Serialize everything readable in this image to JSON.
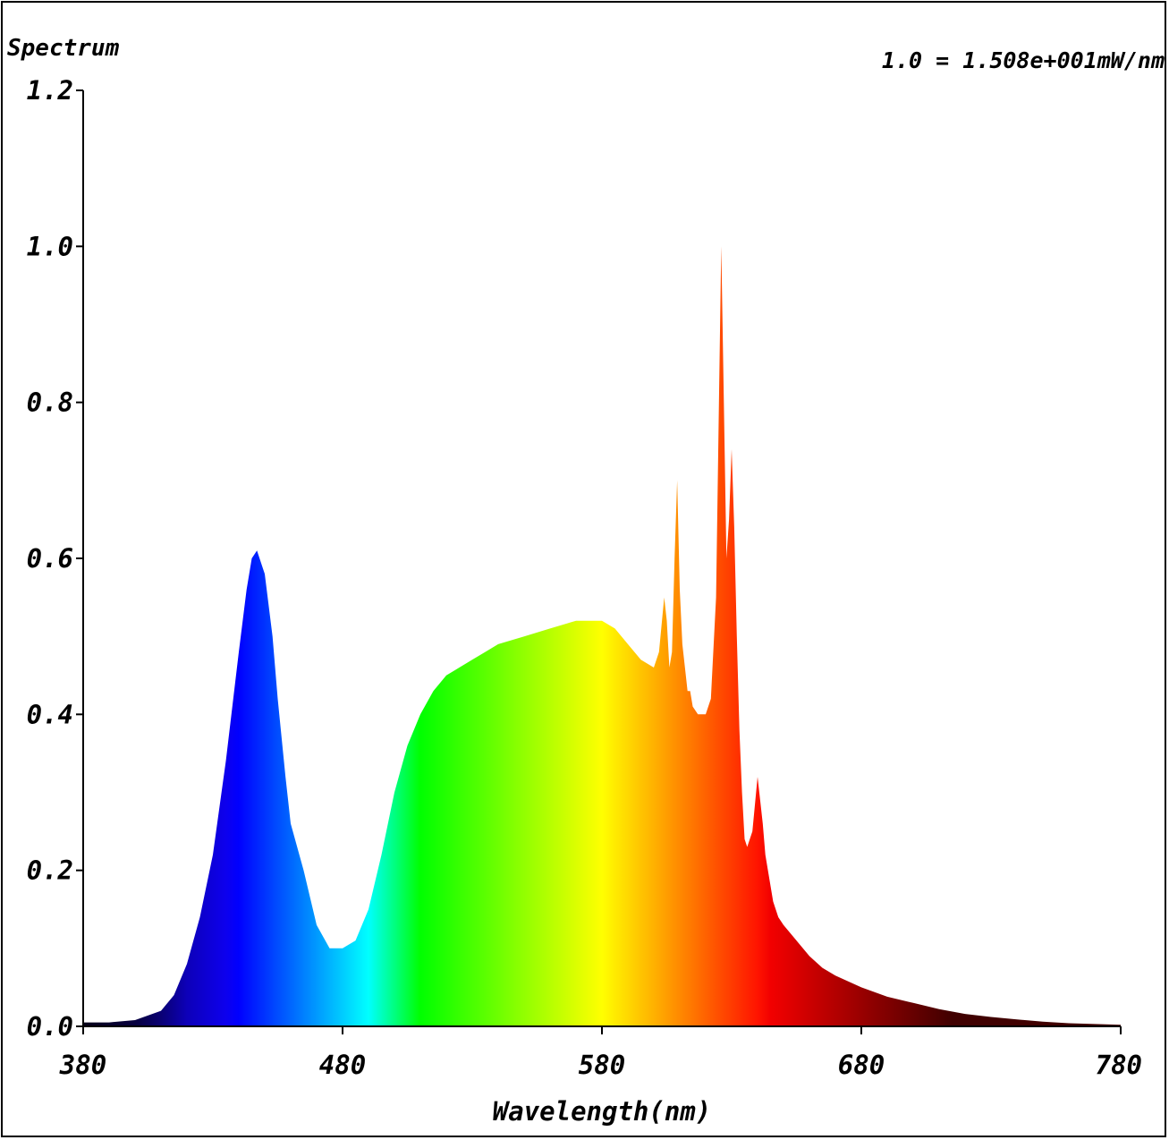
{
  "chart_data": {
    "type": "area",
    "title": "Spectrum",
    "annotation": "1.0 = 1.508e+001mW/nm",
    "xlabel": "Wavelength(nm)",
    "ylabel": "",
    "xlim": [
      380,
      780
    ],
    "ylim": [
      0,
      1.2
    ],
    "x_ticks": [
      380,
      480,
      580,
      680,
      780
    ],
    "x_tick_labels": [
      "380",
      "480",
      "580",
      "680",
      "780"
    ],
    "y_ticks": [
      0.0,
      0.2,
      0.4,
      0.6,
      0.8,
      1.0,
      1.2
    ],
    "y_tick_labels": [
      "0.0",
      "0.2",
      "0.4",
      "0.6",
      "0.8",
      "1.0",
      "1.2"
    ],
    "grid": false,
    "fill": "wavelength-colored spectrum gradient",
    "series": [
      {
        "x": [
          380,
          390,
          400,
          410,
          415,
          420,
          425,
          430,
          435,
          440,
          443,
          445,
          447,
          450,
          453,
          455,
          458,
          460,
          465,
          470,
          475,
          480,
          485,
          490,
          495,
          500,
          505,
          510,
          515,
          520,
          525,
          530,
          535,
          540,
          550,
          560,
          570,
          580,
          585,
          590,
          595,
          600,
          602,
          604,
          605,
          606,
          607,
          608,
          609,
          610,
          611,
          612,
          613,
          614,
          615,
          617,
          620,
          622,
          624,
          626,
          627,
          628,
          629,
          630,
          631,
          632,
          633,
          634,
          635,
          636,
          638,
          640,
          642,
          643,
          644,
          645,
          646,
          648,
          650,
          655,
          660,
          665,
          670,
          680,
          690,
          700,
          710,
          720,
          730,
          740,
          750,
          760,
          770,
          780
        ],
        "y": [
          0.005,
          0.005,
          0.008,
          0.02,
          0.04,
          0.08,
          0.14,
          0.22,
          0.34,
          0.48,
          0.56,
          0.6,
          0.61,
          0.58,
          0.5,
          0.42,
          0.32,
          0.26,
          0.2,
          0.13,
          0.1,
          0.1,
          0.11,
          0.15,
          0.22,
          0.3,
          0.36,
          0.4,
          0.43,
          0.45,
          0.46,
          0.47,
          0.48,
          0.49,
          0.5,
          0.51,
          0.52,
          0.52,
          0.51,
          0.49,
          0.47,
          0.46,
          0.48,
          0.55,
          0.52,
          0.46,
          0.48,
          0.6,
          0.7,
          0.56,
          0.49,
          0.46,
          0.43,
          0.43,
          0.41,
          0.4,
          0.4,
          0.42,
          0.55,
          1.0,
          0.8,
          0.6,
          0.65,
          0.74,
          0.64,
          0.5,
          0.38,
          0.3,
          0.24,
          0.23,
          0.25,
          0.32,
          0.26,
          0.22,
          0.2,
          0.18,
          0.16,
          0.14,
          0.13,
          0.11,
          0.09,
          0.075,
          0.065,
          0.05,
          0.038,
          0.03,
          0.022,
          0.016,
          0.012,
          0.009,
          0.006,
          0.004,
          0.003,
          0.002
        ]
      }
    ]
  }
}
